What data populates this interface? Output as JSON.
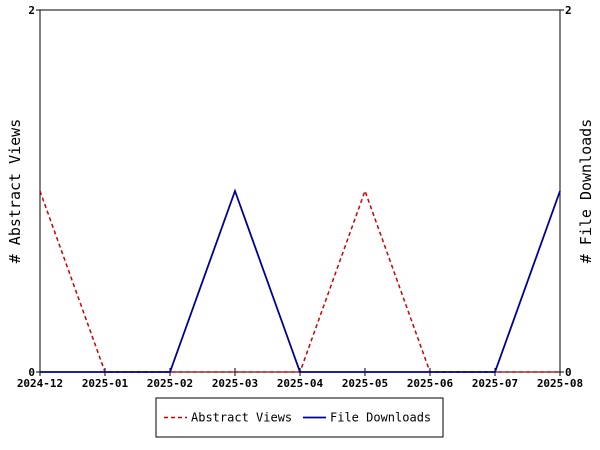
{
  "chart_data": {
    "type": "line",
    "categories": [
      "2024-12",
      "2025-01",
      "2025-02",
      "2025-03",
      "2025-04",
      "2025-05",
      "2025-06",
      "2025-07",
      "2025-08"
    ],
    "series": [
      {
        "name": "Abstract Views",
        "axis": "left",
        "color": "#cc0000",
        "style": "dashed",
        "values": [
          1,
          0,
          0,
          0,
          0,
          1,
          0,
          0,
          0
        ]
      },
      {
        "name": "File Downloads",
        "axis": "right",
        "color": "#000099",
        "style": "solid",
        "values": [
          0,
          0,
          0,
          1,
          0,
          0,
          0,
          0,
          1
        ]
      }
    ],
    "ylabel_left": "# Abstract Views",
    "ylabel_right": "# File Downloads",
    "ylim_left": [
      0,
      2
    ],
    "ylim_right": [
      0,
      2
    ],
    "yticks_left": [
      "0",
      "2"
    ],
    "yticks_right": [
      "0",
      "2"
    ],
    "grid": false,
    "legend_placement": "bottom-center"
  }
}
